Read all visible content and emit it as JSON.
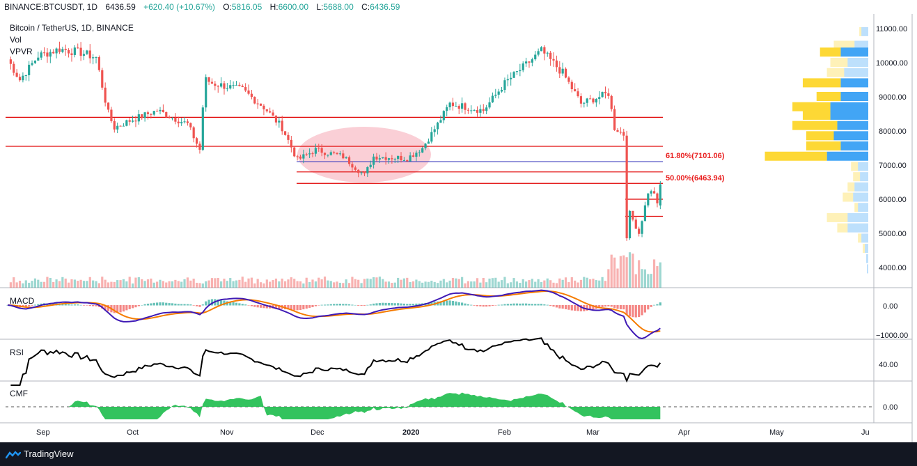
{
  "header": {
    "symbol": "BINANCE:BTCUSDT, 1D",
    "price": "6436.59",
    "change": "+620.40 (+10.67%)",
    "o_label": "O:",
    "o_value": "5816.05",
    "h_label": "H:",
    "h_value": "6600.00",
    "l_label": "L:",
    "l_value": "5688.00",
    "c_label": "C:",
    "c_value": "6436.59"
  },
  "chart_title": "Bitcoin / TetherUS, 1D, BINANCE",
  "indicator_labels": {
    "vol": "Vol",
    "vpvr": "VPVR",
    "macd": "MACD",
    "rsi": "RSI",
    "cmf": "CMF"
  },
  "fib_labels": {
    "fib618": "61.80%(7101.06)",
    "fib50": "50.00%(6463.94)"
  },
  "price_ticks": [
    "11000.00",
    "10000.00",
    "9000.00",
    "8000.00",
    "7000.00",
    "6000.00",
    "5000.00",
    "4000.00"
  ],
  "macd_ticks": [
    "0.00",
    "−1000.00"
  ],
  "rsi_ticks": [
    "40.00"
  ],
  "cmf_ticks": [
    "0.00"
  ],
  "time_labels": [
    "Sep",
    "Oct",
    "Nov",
    "Dec",
    "2020",
    "Feb",
    "Mar",
    "Apr",
    "May",
    "Ju"
  ],
  "footer": {
    "brand": "TradingView"
  },
  "colors": {
    "up": "#26a69a",
    "down": "#ef5350",
    "fib_line": "#3f3fbf",
    "sr_line": "#e00000",
    "vpvr_up": "#42a5f5",
    "vpvr_down": "#fdd835",
    "cmf_fill": "#1dbd4d",
    "macd_line": "#3f1ab5",
    "signal_line": "#f57c00",
    "highlight": "#f8bbc4"
  },
  "chart_data": {
    "type": "candlestick",
    "title": "Bitcoin / TetherUS, 1D, BINANCE",
    "symbol": "BINANCE:BTCUSDT",
    "interval": "1D",
    "last": {
      "open": 5816.05,
      "high": 6600.0,
      "low": 5688.0,
      "close": 6436.59
    },
    "price_axis_range": [
      3500,
      11300
    ],
    "horizontal_levels": [
      8400,
      7550,
      6800,
      6463.94,
      6000,
      5500
    ],
    "fibonacci": [
      {
        "label": "61.80%",
        "price": 7101.06
      },
      {
        "label": "50.00%",
        "price": 6463.94
      }
    ],
    "close_path": [
      [
        "Aug 22",
        10100
      ],
      [
        "Aug 26",
        9500
      ],
      [
        "Sep 1",
        10200
      ],
      [
        "Sep 8",
        10400
      ],
      [
        "Sep 15",
        10300
      ],
      [
        "Sep 20",
        10150
      ],
      [
        "Sep 24",
        8500
      ],
      [
        "Sep 26",
        8100
      ],
      [
        "Oct 1",
        8300
      ],
      [
        "Oct 10",
        8600
      ],
      [
        "Oct 20",
        8200
      ],
      [
        "Oct 24",
        7450
      ],
      [
        "Oct 25",
        8700
      ],
      [
        "Oct 26",
        9500
      ],
      [
        "Oct 28",
        9400
      ],
      [
        "Nov 7",
        9200
      ],
      [
        "Nov 14",
        8700
      ],
      [
        "Nov 20",
        8100
      ],
      [
        "Nov 25",
        7150
      ],
      [
        "Dec 1",
        7450
      ],
      [
        "Dec 10",
        7250
      ],
      [
        "Dec 17",
        6700
      ],
      [
        "Dec 20",
        7250
      ],
      [
        "Dec 31",
        7200
      ],
      [
        "Jan 5",
        7500
      ],
      [
        "Jan 10",
        8200
      ],
      [
        "Jan 14",
        8800
      ],
      [
        "Jan 25",
        8600
      ],
      [
        "Feb 1",
        9400
      ],
      [
        "Feb 10",
        10100
      ],
      [
        "Feb 13",
        10350
      ],
      [
        "Feb 20",
        9700
      ],
      [
        "Feb 26",
        8800
      ],
      [
        "Mar 6",
        9100
      ],
      [
        "Mar 8",
        8100
      ],
      [
        "Mar 11",
        7900
      ],
      [
        "Mar 12",
        4950
      ],
      [
        "Mar 13",
        5600
      ],
      [
        "Mar 16",
        5000
      ],
      [
        "Mar 19",
        6200
      ],
      [
        "Mar 21",
        6200
      ],
      [
        "Mar 22",
        5816
      ],
      [
        "Mar 23",
        6437
      ]
    ],
    "volume_profile_vpvr": [
      {
        "price": 10900,
        "up": 0.1,
        "down": 0.03
      },
      {
        "price": 10500,
        "up": 0.2,
        "down": 0.3
      },
      {
        "price": 10300,
        "up": 0.4,
        "down": 0.3
      },
      {
        "price": 10000,
        "up": 0.3,
        "down": 0.25
      },
      {
        "price": 9700,
        "up": 0.35,
        "down": 0.25
      },
      {
        "price": 9400,
        "up": 0.4,
        "down": 0.55
      },
      {
        "price": 9000,
        "up": 0.4,
        "down": 0.35
      },
      {
        "price": 8700,
        "up": 0.55,
        "down": 0.55
      },
      {
        "price": 8450,
        "up": 0.55,
        "down": 0.4
      },
      {
        "price": 8150,
        "up": 0.45,
        "down": 0.65
      },
      {
        "price": 7850,
        "up": 0.5,
        "down": 0.4
      },
      {
        "price": 7550,
        "up": 0.4,
        "down": 0.5
      },
      {
        "price": 7250,
        "up": 0.6,
        "down": 0.9
      },
      {
        "price": 6950,
        "up": 0.15,
        "down": 0.1
      },
      {
        "price": 6650,
        "up": 0.12,
        "down": 0.1
      },
      {
        "price": 6350,
        "up": 0.2,
        "down": 0.1
      },
      {
        "price": 6050,
        "up": 0.22,
        "down": 0.15
      },
      {
        "price": 5750,
        "up": 0.15,
        "down": 0.05
      },
      {
        "price": 5450,
        "up": 0.3,
        "down": 0.3
      },
      {
        "price": 5150,
        "up": 0.3,
        "down": 0.15
      },
      {
        "price": 4850,
        "up": 0.1,
        "down": 0.05
      },
      {
        "price": 4550,
        "up": 0.05,
        "down": 0.03
      },
      {
        "price": 4250,
        "up": 0.03,
        "down": 0.0
      },
      {
        "price": 3950,
        "up": 0.02,
        "down": 0.0
      }
    ],
    "indicators": [
      "Vol",
      "VPVR",
      "MACD",
      "RSI",
      "CMF"
    ],
    "macd_axis_range": [
      -1100,
      250
    ],
    "rsi_axis_range": [
      20,
      80
    ],
    "cmf_axis_range": [
      -0.3,
      0.4
    ],
    "x_axis_labels": [
      "Sep",
      "Oct",
      "Nov",
      "Dec",
      "2020",
      "Feb",
      "Mar",
      "Apr",
      "May",
      "Ju"
    ]
  }
}
